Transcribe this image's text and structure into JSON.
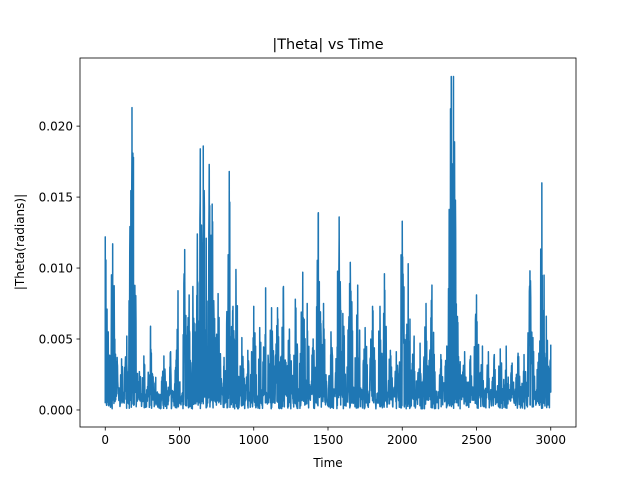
{
  "chart_data": {
    "type": "line",
    "title": "|Theta| vs Time",
    "xlabel": "Time",
    "ylabel": "|Theta(radians)|",
    "xlim": [
      -170,
      3170
    ],
    "ylim": [
      -0.0012,
      0.0248
    ],
    "xticks": [
      {
        "value": 0,
        "label": "0"
      },
      {
        "value": 500,
        "label": "500"
      },
      {
        "value": 1000,
        "label": "1000"
      },
      {
        "value": 1500,
        "label": "1500"
      },
      {
        "value": 2000,
        "label": "2000"
      },
      {
        "value": 2500,
        "label": "2500"
      },
      {
        "value": 3000,
        "label": "3000"
      }
    ],
    "yticks": [
      {
        "value": 0.0,
        "label": "0.000"
      },
      {
        "value": 0.005,
        "label": "0.005"
      },
      {
        "value": 0.01,
        "label": "0.010"
      },
      {
        "value": 0.015,
        "label": "0.015"
      },
      {
        "value": 0.02,
        "label": "0.020"
      }
    ],
    "grid": false,
    "series": [
      {
        "color": "#1f77b4",
        "x_start": 0,
        "x_end": 3000,
        "base_level": 0.0008,
        "peaks": [
          [
            0,
            0.0122
          ],
          [
            5,
            0.0062
          ],
          [
            20,
            0.0055
          ],
          [
            50,
            0.0117
          ],
          [
            80,
            0.0037
          ],
          [
            110,
            0.0036
          ],
          [
            145,
            0.0052
          ],
          [
            180,
            0.0213
          ],
          [
            190,
            0.0178
          ],
          [
            230,
            0.0027
          ],
          [
            260,
            0.0038
          ],
          [
            305,
            0.0059
          ],
          [
            340,
            0.0023
          ],
          [
            395,
            0.0038
          ],
          [
            440,
            0.0041
          ],
          [
            490,
            0.0084
          ],
          [
            535,
            0.0113
          ],
          [
            565,
            0.0081
          ],
          [
            590,
            0.0087
          ],
          [
            620,
            0.0124
          ],
          [
            640,
            0.0184
          ],
          [
            660,
            0.0186
          ],
          [
            680,
            0.0121
          ],
          [
            700,
            0.0173
          ],
          [
            720,
            0.0145
          ],
          [
            760,
            0.0082
          ],
          [
            800,
            0.0037
          ],
          [
            835,
            0.0168
          ],
          [
            860,
            0.0073
          ],
          [
            880,
            0.0099
          ],
          [
            920,
            0.0051
          ],
          [
            960,
            0.0042
          ],
          [
            1000,
            0.0073
          ],
          [
            1040,
            0.0058
          ],
          [
            1080,
            0.0086
          ],
          [
            1120,
            0.0072
          ],
          [
            1160,
            0.0072
          ],
          [
            1200,
            0.0087
          ],
          [
            1240,
            0.0057
          ],
          [
            1280,
            0.0078
          ],
          [
            1330,
            0.0097
          ],
          [
            1360,
            0.0075
          ],
          [
            1400,
            0.005
          ],
          [
            1435,
            0.0139
          ],
          [
            1470,
            0.0075
          ],
          [
            1520,
            0.0055
          ],
          [
            1575,
            0.0136
          ],
          [
            1600,
            0.0068
          ],
          [
            1650,
            0.0104
          ],
          [
            1700,
            0.0088
          ],
          [
            1750,
            0.0058
          ],
          [
            1800,
            0.0073
          ],
          [
            1850,
            0.0073
          ],
          [
            1880,
            0.0096
          ],
          [
            1920,
            0.0042
          ],
          [
            1960,
            0.0041
          ],
          [
            2000,
            0.0133
          ],
          [
            2040,
            0.0103
          ],
          [
            2080,
            0.0052
          ],
          [
            2120,
            0.0047
          ],
          [
            2160,
            0.0075
          ],
          [
            2200,
            0.0088
          ],
          [
            2260,
            0.0039
          ],
          [
            2300,
            0.0045
          ],
          [
            2330,
            0.0235
          ],
          [
            2345,
            0.0235
          ],
          [
            2360,
            0.011
          ],
          [
            2390,
            0.0034
          ],
          [
            2420,
            0.0041
          ],
          [
            2460,
            0.0038
          ],
          [
            2500,
            0.0081
          ],
          [
            2540,
            0.0045
          ],
          [
            2580,
            0.0041
          ],
          [
            2620,
            0.0039
          ],
          [
            2660,
            0.0043
          ],
          [
            2700,
            0.0045
          ],
          [
            2740,
            0.0033
          ],
          [
            2780,
            0.004
          ],
          [
            2820,
            0.0039
          ],
          [
            2860,
            0.0098
          ],
          [
            2880,
            0.0051
          ],
          [
            2920,
            0.004
          ],
          [
            2940,
            0.016
          ],
          [
            2955,
            0.0095
          ],
          [
            2970,
            0.0066
          ],
          [
            3000,
            0.0046
          ]
        ]
      }
    ]
  }
}
